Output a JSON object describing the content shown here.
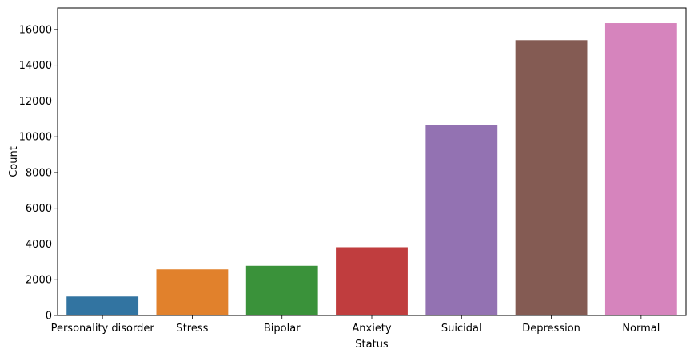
{
  "chart_data": {
    "type": "bar",
    "title": "",
    "xlabel": "Status",
    "ylabel": "Count",
    "categories": [
      "Personality disorder",
      "Stress",
      "Bipolar",
      "Anxiety",
      "Suicidal",
      "Depression",
      "Normal"
    ],
    "values": [
      1060,
      2580,
      2780,
      3820,
      10640,
      15400,
      16350
    ],
    "colors": [
      "#3274a1",
      "#e1812c",
      "#3a923a",
      "#c03d3e",
      "#9372b2",
      "#845b53",
      "#d684bd"
    ],
    "ylim": [
      0,
      17200
    ],
    "yticks": [
      0,
      2000,
      4000,
      6000,
      8000,
      10000,
      12000,
      14000,
      16000
    ],
    "grid": false,
    "legend": "none"
  }
}
